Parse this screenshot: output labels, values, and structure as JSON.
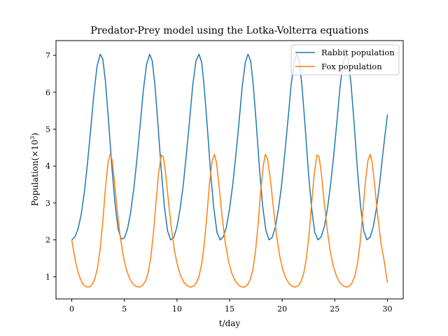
{
  "chart_data": {
    "type": "line",
    "title": "Predator-Prey model using the Lotka-Volterra equations",
    "xlabel": "t/day",
    "ylabel_text": "Population(×10",
    "ylabel_exp": "3",
    "ylabel_close": ")",
    "xlim": [
      -1.5,
      31.5
    ],
    "ylim": [
      0.4,
      7.4
    ],
    "xticks": [
      0,
      5,
      10,
      15,
      20,
      25,
      30
    ],
    "yticks": [
      1,
      2,
      3,
      4,
      5,
      6,
      7
    ],
    "legend": "top-right",
    "grid": false,
    "series": [
      {
        "name": "Rabbit population",
        "color": "#1f77b4",
        "points": [
          [
            0,
            2.0
          ],
          [
            0.3,
            2.08
          ],
          [
            0.6,
            2.3
          ],
          [
            0.9,
            2.7
          ],
          [
            1.2,
            3.3
          ],
          [
            1.5,
            4.1
          ],
          [
            1.8,
            5.0
          ],
          [
            2.1,
            5.95
          ],
          [
            2.4,
            6.7
          ],
          [
            2.7,
            7.03
          ],
          [
            2.95,
            6.9
          ],
          [
            3.2,
            6.3
          ],
          [
            3.5,
            5.2
          ],
          [
            3.8,
            4.0
          ],
          [
            4.1,
            3.0
          ],
          [
            4.4,
            2.3
          ],
          [
            4.7,
            2.02
          ],
          [
            5.0,
            2.05
          ],
          [
            5.3,
            2.3
          ],
          [
            5.6,
            2.75
          ],
          [
            5.9,
            3.4
          ],
          [
            6.2,
            4.2
          ],
          [
            6.5,
            5.1
          ],
          [
            6.8,
            6.05
          ],
          [
            7.1,
            6.75
          ],
          [
            7.4,
            7.03
          ],
          [
            7.65,
            6.85
          ],
          [
            7.9,
            6.2
          ],
          [
            8.2,
            5.1
          ],
          [
            8.5,
            3.9
          ],
          [
            8.8,
            2.9
          ],
          [
            9.1,
            2.25
          ],
          [
            9.4,
            2.0
          ],
          [
            9.7,
            2.07
          ],
          [
            10.0,
            2.35
          ],
          [
            10.3,
            2.85
          ],
          [
            10.6,
            3.5
          ],
          [
            10.9,
            4.35
          ],
          [
            11.2,
            5.25
          ],
          [
            11.5,
            6.2
          ],
          [
            11.8,
            6.85
          ],
          [
            12.1,
            7.03
          ],
          [
            12.35,
            6.8
          ],
          [
            12.6,
            6.1
          ],
          [
            12.9,
            5.0
          ],
          [
            13.2,
            3.8
          ],
          [
            13.5,
            2.85
          ],
          [
            13.8,
            2.2
          ],
          [
            14.1,
            2.0
          ],
          [
            14.4,
            2.08
          ],
          [
            14.7,
            2.35
          ],
          [
            15.0,
            2.85
          ],
          [
            15.3,
            3.5
          ],
          [
            15.6,
            4.3
          ],
          [
            15.9,
            5.2
          ],
          [
            16.2,
            6.15
          ],
          [
            16.5,
            6.82
          ],
          [
            16.75,
            7.03
          ],
          [
            17.0,
            6.85
          ],
          [
            17.25,
            6.2
          ],
          [
            17.55,
            5.1
          ],
          [
            17.85,
            3.9
          ],
          [
            18.15,
            2.9
          ],
          [
            18.45,
            2.25
          ],
          [
            18.75,
            2.0
          ],
          [
            19.05,
            2.07
          ],
          [
            19.35,
            2.35
          ],
          [
            19.65,
            2.85
          ],
          [
            19.95,
            3.5
          ],
          [
            20.25,
            4.35
          ],
          [
            20.55,
            5.25
          ],
          [
            20.85,
            6.2
          ],
          [
            21.15,
            6.85
          ],
          [
            21.4,
            7.03
          ],
          [
            21.65,
            6.82
          ],
          [
            21.9,
            6.1
          ],
          [
            22.2,
            5.0
          ],
          [
            22.5,
            3.8
          ],
          [
            22.8,
            2.85
          ],
          [
            23.1,
            2.2
          ],
          [
            23.4,
            2.0
          ],
          [
            23.7,
            2.08
          ],
          [
            24.0,
            2.35
          ],
          [
            24.3,
            2.85
          ],
          [
            24.6,
            3.5
          ],
          [
            24.9,
            4.3
          ],
          [
            25.2,
            5.2
          ],
          [
            25.5,
            6.15
          ],
          [
            25.8,
            6.82
          ],
          [
            26.05,
            7.03
          ],
          [
            26.3,
            6.85
          ],
          [
            26.55,
            6.2
          ],
          [
            26.85,
            5.1
          ],
          [
            27.15,
            3.9
          ],
          [
            27.45,
            2.9
          ],
          [
            27.75,
            2.25
          ],
          [
            28.05,
            2.0
          ],
          [
            28.35,
            2.07
          ],
          [
            28.65,
            2.35
          ],
          [
            28.95,
            2.85
          ],
          [
            29.25,
            3.5
          ],
          [
            29.55,
            4.3
          ],
          [
            30.0,
            5.4
          ]
        ]
      },
      {
        "name": "Fox population",
        "color": "#ff7f0e",
        "points": [
          [
            0,
            2.0
          ],
          [
            0.2,
            1.65
          ],
          [
            0.4,
            1.35
          ],
          [
            0.6,
            1.12
          ],
          [
            0.8,
            0.95
          ],
          [
            1.0,
            0.83
          ],
          [
            1.2,
            0.76
          ],
          [
            1.45,
            0.72
          ],
          [
            1.7,
            0.73
          ],
          [
            1.95,
            0.8
          ],
          [
            2.2,
            0.95
          ],
          [
            2.45,
            1.25
          ],
          [
            2.7,
            1.75
          ],
          [
            2.95,
            2.5
          ],
          [
            3.2,
            3.4
          ],
          [
            3.45,
            4.1
          ],
          [
            3.65,
            4.32
          ],
          [
            3.85,
            4.15
          ],
          [
            4.05,
            3.6
          ],
          [
            4.3,
            2.85
          ],
          [
            4.6,
            2.1
          ],
          [
            4.9,
            1.55
          ],
          [
            5.2,
            1.18
          ],
          [
            5.5,
            0.95
          ],
          [
            5.8,
            0.81
          ],
          [
            6.1,
            0.74
          ],
          [
            6.4,
            0.72
          ],
          [
            6.7,
            0.76
          ],
          [
            7.0,
            0.88
          ],
          [
            7.25,
            1.1
          ],
          [
            7.5,
            1.5
          ],
          [
            7.75,
            2.15
          ],
          [
            8.0,
            3.0
          ],
          [
            8.25,
            3.8
          ],
          [
            8.5,
            4.3
          ],
          [
            8.7,
            4.25
          ],
          [
            8.9,
            3.85
          ],
          [
            9.15,
            3.15
          ],
          [
            9.45,
            2.35
          ],
          [
            9.75,
            1.72
          ],
          [
            10.05,
            1.3
          ],
          [
            10.35,
            1.02
          ],
          [
            10.65,
            0.85
          ],
          [
            10.95,
            0.76
          ],
          [
            11.25,
            0.72
          ],
          [
            11.55,
            0.74
          ],
          [
            11.85,
            0.84
          ],
          [
            12.1,
            1.02
          ],
          [
            12.35,
            1.35
          ],
          [
            12.6,
            1.9
          ],
          [
            12.85,
            2.7
          ],
          [
            13.1,
            3.55
          ],
          [
            13.35,
            4.15
          ],
          [
            13.55,
            4.32
          ],
          [
            13.75,
            4.1
          ],
          [
            14.0,
            3.45
          ],
          [
            14.3,
            2.6
          ],
          [
            14.6,
            1.9
          ],
          [
            14.9,
            1.42
          ],
          [
            15.2,
            1.1
          ],
          [
            15.5,
            0.9
          ],
          [
            15.8,
            0.79
          ],
          [
            16.1,
            0.73
          ],
          [
            16.4,
            0.72
          ],
          [
            16.7,
            0.78
          ],
          [
            16.95,
            0.92
          ],
          [
            17.2,
            1.18
          ],
          [
            17.45,
            1.65
          ],
          [
            17.7,
            2.4
          ],
          [
            17.95,
            3.3
          ],
          [
            18.2,
            4.0
          ],
          [
            18.4,
            4.32
          ],
          [
            18.6,
            4.2
          ],
          [
            18.85,
            3.7
          ],
          [
            19.15,
            2.9
          ],
          [
            19.45,
            2.15
          ],
          [
            19.75,
            1.58
          ],
          [
            20.05,
            1.2
          ],
          [
            20.35,
            0.96
          ],
          [
            20.65,
            0.82
          ],
          [
            20.95,
            0.74
          ],
          [
            21.25,
            0.72
          ],
          [
            21.55,
            0.76
          ],
          [
            21.8,
            0.88
          ],
          [
            22.05,
            1.1
          ],
          [
            22.3,
            1.5
          ],
          [
            22.55,
            2.15
          ],
          [
            22.8,
            3.0
          ],
          [
            23.05,
            3.8
          ],
          [
            23.3,
            4.3
          ],
          [
            23.5,
            4.25
          ],
          [
            23.7,
            3.85
          ],
          [
            23.95,
            3.15
          ],
          [
            24.25,
            2.35
          ],
          [
            24.55,
            1.72
          ],
          [
            24.85,
            1.3
          ],
          [
            25.15,
            1.02
          ],
          [
            25.45,
            0.85
          ],
          [
            25.75,
            0.76
          ],
          [
            26.05,
            0.72
          ],
          [
            26.35,
            0.74
          ],
          [
            26.65,
            0.84
          ],
          [
            26.9,
            1.02
          ],
          [
            27.15,
            1.35
          ],
          [
            27.4,
            1.9
          ],
          [
            27.65,
            2.7
          ],
          [
            27.9,
            3.55
          ],
          [
            28.15,
            4.15
          ],
          [
            28.35,
            4.32
          ],
          [
            28.55,
            4.1
          ],
          [
            28.8,
            3.45
          ],
          [
            29.1,
            2.6
          ],
          [
            29.4,
            1.9
          ],
          [
            29.7,
            1.42
          ],
          [
            30.0,
            0.84
          ]
        ]
      }
    ]
  }
}
